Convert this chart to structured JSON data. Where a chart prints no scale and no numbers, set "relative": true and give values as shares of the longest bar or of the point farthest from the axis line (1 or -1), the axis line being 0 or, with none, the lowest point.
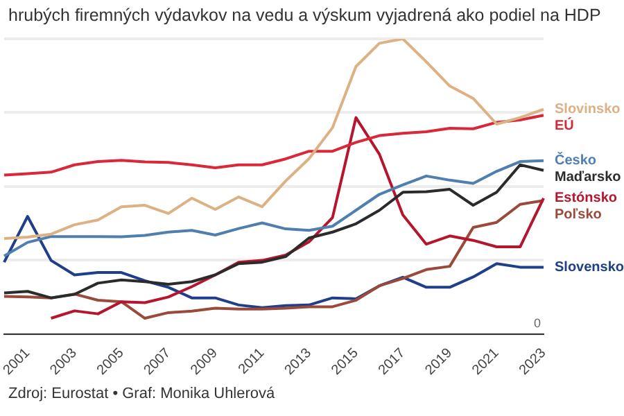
{
  "chart_data": {
    "type": "line",
    "title": "hrubých firemných výdavkov na vedu a výskum vyjadrená ako podiel na HDP",
    "relative": true,
    "grid": "y",
    "legend": false,
    "marker": "none",
    "line_style": "solid",
    "categories": [
      null,
      "2001",
      null,
      "2003",
      null,
      "2005",
      null,
      "2007",
      null,
      "2009",
      null,
      "2011",
      null,
      "2013",
      null,
      "2015",
      null,
      "2017",
      null,
      "2019",
      null,
      "2021",
      null,
      "2023"
    ],
    "series": [
      {
        "name": "Slovinsko",
        "color": "#dcb184",
        "values": [
          0.323,
          0.328,
          0.338,
          0.37,
          0.386,
          0.431,
          0.436,
          0.408,
          0.46,
          0.422,
          0.464,
          0.431,
          0.518,
          0.594,
          0.699,
          0.906,
          0.985,
          1.0,
          0.922,
          0.84,
          0.798,
          0.711,
          0.733,
          0.761
        ]
      },
      {
        "name": "EÚ",
        "color": "#d8283a",
        "values": [
          0.538,
          0.543,
          0.548,
          0.573,
          0.584,
          0.588,
          0.583,
          0.581,
          0.573,
          0.563,
          0.573,
          0.573,
          0.593,
          0.619,
          0.619,
          0.649,
          0.672,
          0.68,
          0.685,
          0.697,
          0.695,
          0.717,
          0.725,
          0.741
        ]
      },
      {
        "name": "Česko",
        "color": "#4f7fae",
        "values": [
          0.264,
          0.31,
          0.33,
          0.33,
          0.33,
          0.329,
          0.334,
          0.345,
          0.351,
          0.335,
          0.357,
          0.376,
          0.356,
          0.351,
          0.365,
          0.419,
          0.473,
          0.505,
          0.535,
          0.521,
          0.51,
          0.551,
          0.584,
          0.587
        ]
      },
      {
        "name": "Maďarsko",
        "color": "#2b2b2b",
        "values": [
          0.139,
          0.144,
          0.122,
          0.134,
          0.172,
          0.183,
          0.177,
          0.168,
          0.177,
          0.2,
          0.238,
          0.243,
          0.262,
          0.325,
          0.345,
          0.373,
          0.419,
          0.48,
          0.482,
          0.49,
          0.436,
          0.48,
          0.573,
          0.554
        ]
      },
      {
        "name": "Estónsko",
        "color": "#b5162e",
        "values": [
          null,
          null,
          0.053,
          0.078,
          0.068,
          0.109,
          0.106,
          0.125,
          0.16,
          0.2,
          0.243,
          0.249,
          0.267,
          0.312,
          0.394,
          0.733,
          0.609,
          0.403,
          0.304,
          0.332,
          0.317,
          0.295,
          0.295,
          0.46
        ]
      },
      {
        "name": "Poľsko",
        "color": "#9a4a3a",
        "values": [
          0.127,
          0.125,
          0.122,
          0.135,
          0.114,
          0.109,
          0.053,
          0.072,
          0.077,
          0.087,
          0.084,
          0.084,
          0.087,
          0.092,
          0.092,
          0.114,
          0.163,
          0.188,
          0.218,
          0.229,
          0.361,
          0.378,
          0.439,
          0.452
        ]
      },
      {
        "name": "Slovensko",
        "color": "#1f3f8a",
        "values": [
          0.243,
          0.398,
          0.249,
          0.2,
          0.208,
          0.208,
          0.18,
          0.158,
          0.122,
          0.122,
          0.098,
          0.089,
          0.096,
          0.098,
          0.122,
          0.119,
          0.163,
          0.192,
          0.158,
          0.158,
          0.193,
          0.238,
          0.226,
          0.226
        ]
      }
    ],
    "annotations": [
      "0",
      "Zdroj: Eurostat • Graf: Monika Uhlerová"
    ]
  }
}
